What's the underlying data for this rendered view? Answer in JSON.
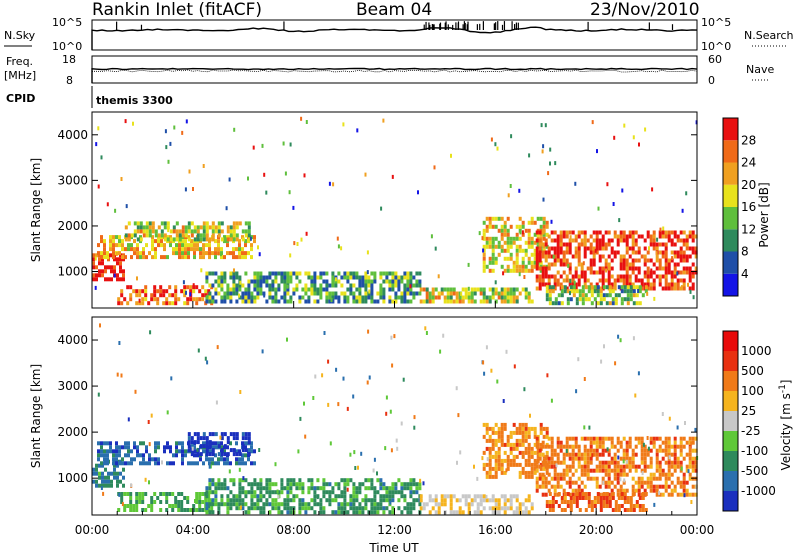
{
  "header": {
    "station": "Rankin Inlet (fitACF)",
    "beam": "Beam 04",
    "date": "23/Nov/2010"
  },
  "params": {
    "nsky_label": "N.Sky",
    "nsearch_label": "N.Search",
    "nsky_ticks": [
      "10^5",
      "10^0"
    ],
    "nsearch_ticks": [
      "10^5",
      "10^0"
    ],
    "freq_label_1": "Freq.",
    "freq_label_2": "[MHz]",
    "freq_ticks": [
      "18",
      "8"
    ],
    "nave_label": "Nave",
    "nave_ticks": [
      "60",
      "0"
    ],
    "cpid_label": "CPID",
    "cpid_value": "themis 3300"
  },
  "chart_data": [
    {
      "type": "heatmap",
      "name": "power",
      "ylabel": "Slant Range [km]",
      "ylim": [
        200,
        4500
      ],
      "y_ticks": [
        "1000",
        "2000",
        "3000",
        "4000"
      ],
      "xlim": [
        "00:00",
        "24:00"
      ],
      "colorbar_label": "Power [dB]",
      "colorbar_ticks": [
        "4",
        "8",
        "12",
        "16",
        "20",
        "24",
        "28"
      ],
      "colorbar_colors": [
        "#1414e6",
        "#1f4fa8",
        "#2e8a5c",
        "#5fbf3c",
        "#e8e21c",
        "#f0a020",
        "#f06a18",
        "#e81010"
      ],
      "clusters": [
        {
          "t0": 0.0,
          "t1": 1.2,
          "r0": 800,
          "r1": 1400,
          "level": 0.95
        },
        {
          "t0": 0.2,
          "t1": 6.5,
          "r0": 1300,
          "r1": 1800,
          "level": 0.65
        },
        {
          "t0": 1.3,
          "t1": 6.2,
          "r0": 1700,
          "r1": 2100,
          "level": 0.55
        },
        {
          "t0": 1.0,
          "t1": 4.8,
          "r0": 300,
          "r1": 700,
          "level": 0.8
        },
        {
          "t0": 4.5,
          "t1": 13.0,
          "r0": 300,
          "r1": 1000,
          "level": 0.35
        },
        {
          "t0": 13.0,
          "t1": 17.5,
          "r0": 300,
          "r1": 650,
          "level": 0.55
        },
        {
          "t0": 15.5,
          "t1": 18.0,
          "r0": 1000,
          "r1": 2200,
          "level": 0.6
        },
        {
          "t0": 17.6,
          "t1": 24.0,
          "r0": 600,
          "r1": 1900,
          "level": 0.9
        },
        {
          "t0": 18.0,
          "t1": 22.0,
          "r0": 300,
          "r1": 700,
          "level": 0.45
        }
      ]
    },
    {
      "type": "heatmap",
      "name": "velocity",
      "ylabel": "Slant Range [km]",
      "ylim": [
        200,
        4500
      ],
      "y_ticks": [
        "1000",
        "2000",
        "3000",
        "4000"
      ],
      "xlim": [
        "00:00",
        "24:00"
      ],
      "xlabel": "Time UT",
      "x_ticks": [
        "00:00",
        "04:00",
        "08:00",
        "12:00",
        "16:00",
        "20:00",
        "00:00"
      ],
      "colorbar_label": "Velocity [m s",
      "colorbar_sup": "-1",
      "colorbar_ticks": [
        "1000",
        "500",
        "100",
        "25",
        "-25",
        "-100",
        "-500",
        "-1000"
      ],
      "colorbar_colors": [
        "#1a2fbe",
        "#2a6fae",
        "#2e8a5c",
        "#5fc838",
        "#c8c8c8",
        "#f5b41e",
        "#f07a18",
        "#e83010",
        "#e80a0a"
      ],
      "clusters": [
        {
          "t0": 0.0,
          "t1": 1.2,
          "r0": 800,
          "r1": 1400,
          "level": 0.25
        },
        {
          "t0": 0.2,
          "t1": 6.5,
          "r0": 1300,
          "r1": 1800,
          "level": 0.15
        },
        {
          "t0": 3.8,
          "t1": 6.2,
          "r0": 1500,
          "r1": 2000,
          "level": 0.05
        },
        {
          "t0": 1.0,
          "t1": 4.8,
          "r0": 300,
          "r1": 700,
          "level": 0.35
        },
        {
          "t0": 4.5,
          "t1": 13.0,
          "r0": 300,
          "r1": 1000,
          "level": 0.3
        },
        {
          "t0": 13.0,
          "t1": 17.5,
          "r0": 300,
          "r1": 650,
          "level": 0.55
        },
        {
          "t0": 15.5,
          "t1": 18.0,
          "r0": 1000,
          "r1": 2200,
          "level": 0.7
        },
        {
          "t0": 17.6,
          "t1": 24.0,
          "r0": 600,
          "r1": 1900,
          "level": 0.72
        },
        {
          "t0": 18.0,
          "t1": 22.0,
          "r0": 300,
          "r1": 700,
          "level": 0.75
        }
      ]
    }
  ]
}
